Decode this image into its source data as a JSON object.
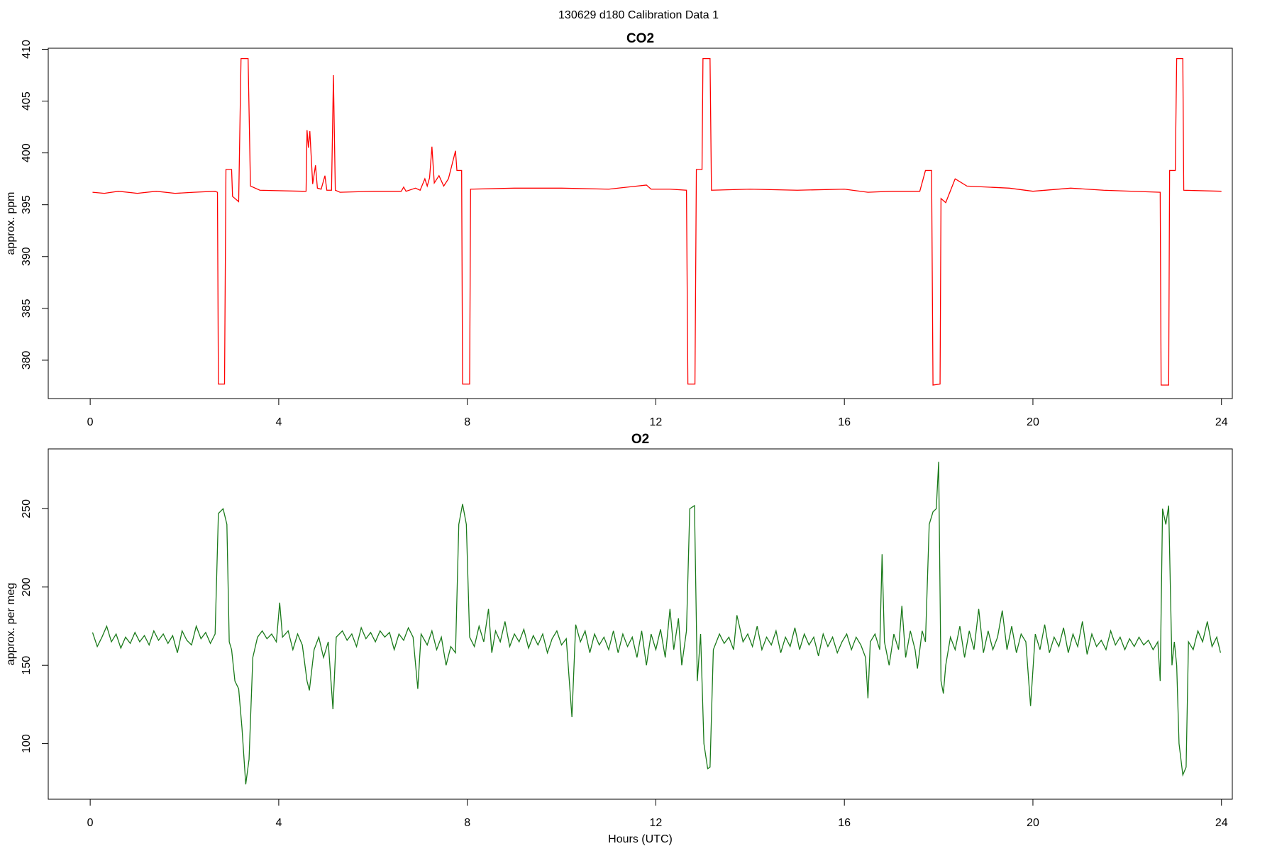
{
  "suptitle": "130629   d180   Calibration Data 1",
  "chart_data": [
    {
      "type": "line",
      "title": "CO2",
      "ylabel": "approx. ppm",
      "color": "#ff0000",
      "xlim": [
        -0.89,
        24.23
      ],
      "xticks": [
        0,
        4,
        8,
        12,
        16,
        20,
        24
      ],
      "ylim": [
        376.3,
        410.1
      ],
      "yticks": [
        380,
        385,
        390,
        395,
        400,
        405,
        410
      ],
      "x": [
        0.05,
        0.3,
        0.6,
        1.0,
        1.4,
        1.8,
        2.2,
        2.65,
        2.7,
        2.72,
        2.85,
        2.88,
        3.0,
        3.02,
        3.15,
        3.2,
        3.35,
        3.4,
        3.6,
        4.5,
        4.58,
        4.6,
        4.63,
        4.66,
        4.72,
        4.78,
        4.82,
        4.9,
        4.98,
        5.02,
        5.12,
        5.16,
        5.2,
        5.3,
        6.0,
        6.6,
        6.65,
        6.7,
        6.9,
        7.0,
        7.1,
        7.15,
        7.2,
        7.25,
        7.3,
        7.4,
        7.5,
        7.6,
        7.75,
        7.78,
        7.88,
        7.9,
        8.05,
        8.07,
        9.0,
        10.0,
        11.0,
        11.8,
        11.9,
        12.3,
        12.65,
        12.68,
        12.83,
        12.86,
        12.98,
        13.0,
        13.15,
        13.18,
        14.0,
        15.0,
        16.0,
        16.5,
        17.0,
        17.6,
        17.72,
        17.85,
        17.88,
        18.03,
        18.05,
        18.15,
        18.35,
        18.6,
        19.5,
        20.0,
        20.8,
        21.5,
        22.7,
        22.72,
        22.88,
        22.9,
        23.02,
        23.05,
        23.18,
        23.2,
        24.0
      ],
      "values": [
        396.2,
        396.1,
        396.3,
        396.1,
        396.3,
        396.1,
        396.2,
        396.3,
        396.2,
        377.7,
        377.7,
        398.4,
        398.4,
        395.8,
        395.3,
        409.1,
        409.1,
        396.8,
        396.4,
        396.3,
        396.3,
        402.2,
        400.5,
        402.1,
        397.0,
        398.8,
        396.6,
        396.5,
        397.8,
        396.4,
        396.4,
        407.5,
        396.4,
        396.2,
        396.3,
        396.3,
        396.7,
        396.3,
        396.6,
        396.4,
        397.5,
        396.8,
        397.6,
        400.6,
        397.1,
        397.8,
        396.8,
        397.5,
        400.2,
        398.3,
        398.3,
        377.7,
        377.7,
        396.5,
        396.6,
        396.6,
        396.5,
        396.9,
        396.5,
        396.5,
        396.4,
        377.7,
        377.7,
        398.4,
        398.4,
        409.1,
        409.1,
        396.4,
        396.5,
        396.4,
        396.5,
        396.2,
        396.3,
        396.3,
        398.3,
        398.3,
        377.6,
        377.7,
        395.6,
        395.2,
        397.5,
        396.8,
        396.6,
        396.3,
        396.6,
        396.4,
        396.2,
        377.6,
        377.6,
        398.3,
        398.3,
        409.1,
        409.1,
        396.4,
        396.3
      ]
    },
    {
      "type": "line",
      "title": "O2",
      "ylabel": "approx. per meg",
      "xlabel": "Hours (UTC)",
      "color": "#1a7a1a",
      "xlim": [
        -0.89,
        24.23
      ],
      "xticks": [
        0,
        4,
        8,
        12,
        16,
        20,
        24
      ],
      "ylim": [
        64.5,
        288.2
      ],
      "yticks": [
        100,
        150,
        200,
        250
      ],
      "x": [
        0.05,
        0.15,
        0.25,
        0.35,
        0.45,
        0.55,
        0.65,
        0.75,
        0.85,
        0.95,
        1.05,
        1.15,
        1.25,
        1.35,
        1.45,
        1.55,
        1.65,
        1.75,
        1.85,
        1.95,
        2.05,
        2.15,
        2.25,
        2.35,
        2.45,
        2.55,
        2.65,
        2.72,
        2.82,
        2.9,
        2.95,
        3.0,
        3.07,
        3.15,
        3.22,
        3.3,
        3.37,
        3.45,
        3.55,
        3.65,
        3.75,
        3.85,
        3.95,
        4.02,
        4.08,
        4.2,
        4.3,
        4.4,
        4.5,
        4.6,
        4.65,
        4.75,
        4.85,
        4.95,
        5.05,
        5.15,
        5.22,
        5.35,
        5.45,
        5.55,
        5.65,
        5.75,
        5.85,
        5.95,
        6.05,
        6.15,
        6.25,
        6.35,
        6.45,
        6.55,
        6.65,
        6.75,
        6.85,
        6.95,
        7.02,
        7.15,
        7.25,
        7.35,
        7.45,
        7.55,
        7.65,
        7.75,
        7.82,
        7.9,
        7.98,
        8.05,
        8.15,
        8.25,
        8.35,
        8.45,
        8.52,
        8.6,
        8.7,
        8.8,
        8.9,
        9.0,
        9.1,
        9.2,
        9.3,
        9.4,
        9.5,
        9.6,
        9.7,
        9.8,
        9.9,
        10.0,
        10.1,
        10.22,
        10.3,
        10.4,
        10.5,
        10.6,
        10.7,
        10.8,
        10.9,
        11.0,
        11.1,
        11.2,
        11.3,
        11.4,
        11.5,
        11.6,
        11.7,
        11.8,
        11.9,
        12.0,
        12.1,
        12.2,
        12.3,
        12.38,
        12.48,
        12.55,
        12.65,
        12.72,
        12.82,
        12.88,
        12.95,
        13.02,
        13.1,
        13.15,
        13.22,
        13.35,
        13.45,
        13.55,
        13.65,
        13.72,
        13.85,
        13.95,
        14.05,
        14.15,
        14.25,
        14.35,
        14.45,
        14.55,
        14.65,
        14.75,
        14.85,
        14.95,
        15.05,
        15.15,
        15.25,
        15.35,
        15.45,
        15.55,
        15.65,
        15.75,
        15.85,
        15.95,
        16.05,
        16.15,
        16.25,
        16.35,
        16.45,
        16.5,
        16.55,
        16.65,
        16.75,
        16.8,
        16.85,
        16.95,
        17.05,
        17.15,
        17.22,
        17.3,
        17.4,
        17.5,
        17.55,
        17.65,
        17.72,
        17.8,
        17.88,
        17.95,
        18.0,
        18.05,
        18.1,
        18.15,
        18.25,
        18.35,
        18.45,
        18.55,
        18.65,
        18.75,
        18.85,
        18.95,
        19.05,
        19.15,
        19.25,
        19.35,
        19.45,
        19.55,
        19.65,
        19.75,
        19.85,
        19.95,
        20.05,
        20.15,
        20.25,
        20.35,
        20.45,
        20.55,
        20.65,
        20.75,
        20.85,
        20.95,
        21.05,
        21.15,
        21.25,
        21.35,
        21.45,
        21.55,
        21.65,
        21.75,
        21.85,
        21.95,
        22.05,
        22.15,
        22.25,
        22.35,
        22.45,
        22.55,
        22.65,
        22.7,
        22.75,
        22.82,
        22.88,
        22.95,
        23.0,
        23.05,
        23.1,
        23.18,
        23.25,
        23.3,
        23.4,
        23.5,
        23.6,
        23.7,
        23.8,
        23.9,
        23.98
      ],
      "values": [
        171,
        162,
        168,
        175,
        165,
        170,
        161,
        168,
        164,
        171,
        165,
        169,
        163,
        172,
        166,
        170,
        164,
        169,
        158,
        172,
        166,
        163,
        175,
        167,
        171,
        164,
        170,
        247,
        250,
        240,
        165,
        160,
        140,
        135,
        110,
        74,
        90,
        155,
        168,
        172,
        167,
        170,
        165,
        190,
        168,
        172,
        160,
        170,
        163,
        140,
        134,
        160,
        168,
        155,
        165,
        122,
        168,
        172,
        166,
        170,
        162,
        174,
        167,
        171,
        165,
        172,
        168,
        171,
        160,
        170,
        166,
        174,
        168,
        135,
        170,
        163,
        172,
        160,
        168,
        150,
        162,
        158,
        240,
        253,
        240,
        168,
        162,
        175,
        165,
        186,
        158,
        172,
        165,
        178,
        162,
        170,
        165,
        173,
        161,
        169,
        163,
        170,
        158,
        167,
        172,
        163,
        167,
        117,
        176,
        165,
        172,
        158,
        170,
        163,
        168,
        160,
        172,
        158,
        170,
        162,
        168,
        155,
        172,
        150,
        170,
        160,
        173,
        155,
        186,
        160,
        180,
        150,
        172,
        250,
        252,
        140,
        170,
        100,
        84,
        85,
        160,
        170,
        164,
        168,
        160,
        182,
        165,
        170,
        162,
        175,
        160,
        168,
        163,
        172,
        158,
        168,
        162,
        174,
        160,
        170,
        163,
        168,
        156,
        170,
        162,
        168,
        158,
        165,
        170,
        160,
        168,
        163,
        155,
        129,
        165,
        170,
        160,
        221,
        165,
        150,
        170,
        160,
        188,
        155,
        172,
        160,
        148,
        172,
        165,
        240,
        248,
        250,
        280,
        140,
        132,
        150,
        168,
        160,
        175,
        155,
        172,
        160,
        186,
        158,
        172,
        160,
        168,
        185,
        160,
        175,
        158,
        170,
        165,
        124,
        170,
        160,
        176,
        158,
        168,
        162,
        174,
        158,
        170,
        162,
        178,
        157,
        170,
        162,
        166,
        160,
        172,
        163,
        168,
        160,
        167,
        162,
        168,
        163,
        166,
        160,
        165,
        140,
        250,
        240,
        252,
        150,
        165,
        150,
        100,
        80,
        85,
        165,
        160,
        172,
        165,
        178,
        162,
        168,
        158
      ]
    }
  ]
}
